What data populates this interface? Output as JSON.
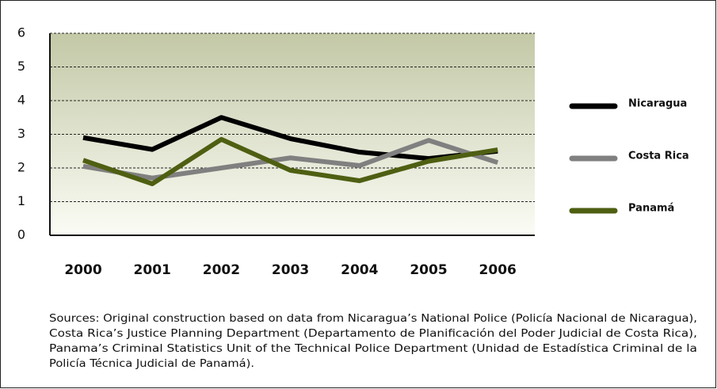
{
  "chart_data": {
    "type": "line",
    "categories": [
      "2000",
      "2001",
      "2002",
      "2003",
      "2004",
      "2005",
      "2006"
    ],
    "series": [
      {
        "name": "Nicaragua",
        "color": "#000000",
        "values": [
          2.9,
          2.55,
          3.5,
          2.87,
          2.47,
          2.28,
          2.5
        ]
      },
      {
        "name": "Costa Rica",
        "color": "#808080",
        "values": [
          2.05,
          1.7,
          2.0,
          2.3,
          2.07,
          2.82,
          2.16
        ]
      },
      {
        "name": "Panamá",
        "color": "#4e5f12",
        "values": [
          2.23,
          1.53,
          2.85,
          1.93,
          1.62,
          2.2,
          2.54
        ]
      }
    ],
    "ylim": [
      0,
      6
    ],
    "yticks": [
      0,
      1,
      2,
      3,
      4,
      5,
      6
    ],
    "grid": true,
    "legend": "right",
    "source": [
      "Sources: Original construction based on data from Nicaragua’s National Police (Policía Nacional de Nicaragua),",
      "Costa Rica’s Justice Planning Department (Departamento de Planificación del Poder Judicial de Costa Rica),",
      "Panama’s Criminal Statistics Unit of the Technical Police Department (Unidad de Estadística Criminal de la",
      "Policía Técnica Judicial de Panamá)."
    ]
  }
}
